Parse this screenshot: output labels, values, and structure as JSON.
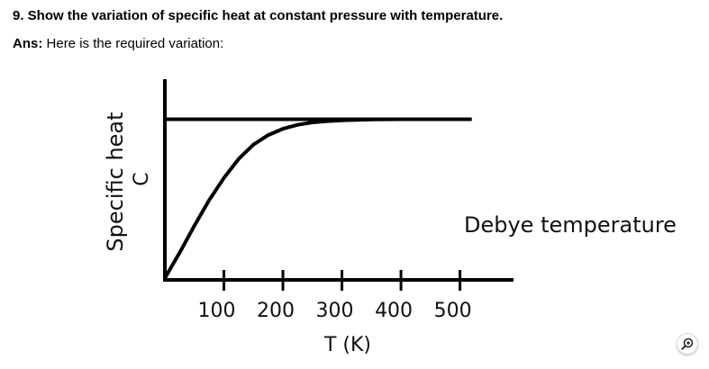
{
  "question": {
    "text": "9. Show the variation of specific heat at constant pressure with temperature."
  },
  "answer": {
    "label": "Ans:",
    "text": "Here is the required variation:"
  },
  "chart_data": {
    "type": "line",
    "title": "",
    "ylabel": "Specific heat",
    "ysymbol": "C",
    "xlabel": "T (K)",
    "annotation": "Debye temperature",
    "xticks": [
      "100",
      "200",
      "300",
      "400",
      "500"
    ],
    "xtick_values": [
      100,
      200,
      300,
      400,
      500
    ],
    "xlim": [
      0,
      580
    ],
    "ylim": [
      0,
      1.15
    ],
    "grid": false,
    "series": [
      {
        "x": [
          0,
          25,
          50,
          75,
          100,
          125,
          150,
          175,
          200,
          225,
          250,
          275,
          300,
          325,
          350,
          400,
          450,
          500
        ],
        "y": [
          0,
          0.16,
          0.33,
          0.49,
          0.63,
          0.75,
          0.84,
          0.9,
          0.94,
          0.965,
          0.98,
          0.988,
          0.993,
          0.996,
          0.998,
          1.0,
          1.0,
          1.0
        ]
      }
    ],
    "reference_lines": [
      {
        "y": 1.0,
        "x_from": 0,
        "x_to": 520
      }
    ]
  },
  "icons": {
    "zoom": "zoom-in-icon"
  }
}
